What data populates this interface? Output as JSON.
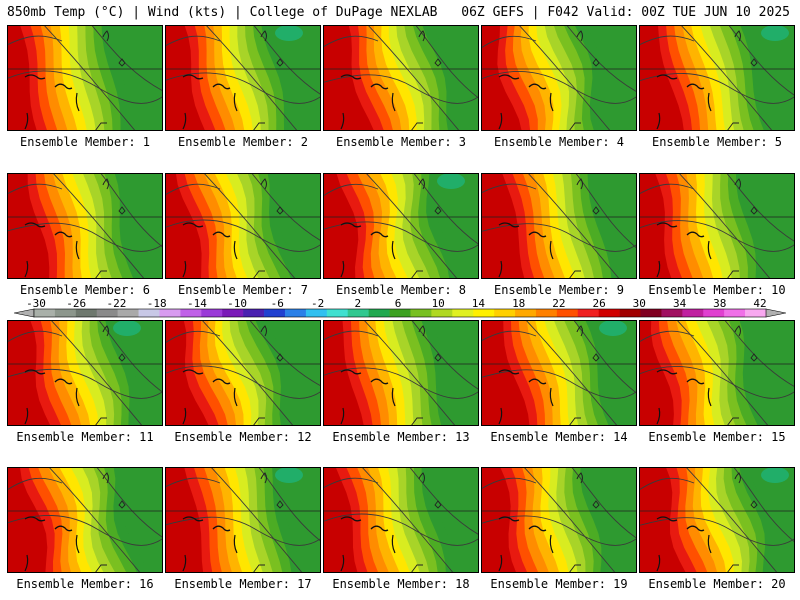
{
  "header": {
    "left": "850mb Temp (°C) | Wind (kts) | College of DuPage NEXLAB",
    "right": "06Z GEFS | F042 Valid: 00Z TUE JUN 10 2025"
  },
  "panels": [
    {
      "label": "Ensemble Member: 1",
      "row": 0,
      "col": 0
    },
    {
      "label": "Ensemble Member: 2",
      "row": 0,
      "col": 1
    },
    {
      "label": "Ensemble Member: 3",
      "row": 0,
      "col": 2
    },
    {
      "label": "Ensemble Member: 4",
      "row": 0,
      "col": 3
    },
    {
      "label": "Ensemble Member: 5",
      "row": 0,
      "col": 4
    },
    {
      "label": "Ensemble Member: 6",
      "row": 1,
      "col": 0
    },
    {
      "label": "Ensemble Member: 7",
      "row": 1,
      "col": 1
    },
    {
      "label": "Ensemble Member: 8",
      "row": 1,
      "col": 2
    },
    {
      "label": "Ensemble Member: 9",
      "row": 1,
      "col": 3
    },
    {
      "label": "Ensemble Member: 10",
      "row": 1,
      "col": 4
    },
    {
      "label": "Ensemble Member: 11",
      "row": 2,
      "col": 0
    },
    {
      "label": "Ensemble Member: 12",
      "row": 2,
      "col": 1
    },
    {
      "label": "Ensemble Member: 13",
      "row": 2,
      "col": 2
    },
    {
      "label": "Ensemble Member: 14",
      "row": 2,
      "col": 3
    },
    {
      "label": "Ensemble Member: 15",
      "row": 2,
      "col": 4
    },
    {
      "label": "Ensemble Member: 16",
      "row": 3,
      "col": 0
    },
    {
      "label": "Ensemble Member: 17",
      "row": 3,
      "col": 1
    },
    {
      "label": "Ensemble Member: 18",
      "row": 3,
      "col": 2
    },
    {
      "label": "Ensemble Member: 19",
      "row": 3,
      "col": 3
    },
    {
      "label": "Ensemble Member: 20",
      "row": 3,
      "col": 4
    }
  ],
  "colorbar": {
    "labels": [
      "-30",
      "-26",
      "-22",
      "-18",
      "-14",
      "-10",
      "-6",
      "-2",
      "2",
      "6",
      "10",
      "14",
      "18",
      "22",
      "26",
      "30",
      "34",
      "38",
      "42"
    ],
    "colors": [
      "#a9b0a9",
      "#8c968c",
      "#6e786e",
      "#8a8a8a",
      "#a9a9a9",
      "#c8c8e6",
      "#d89bf0",
      "#c060e8",
      "#9a3ad8",
      "#7a1ab8",
      "#4a20b0",
      "#2040d0",
      "#2a80e8",
      "#30c0f0",
      "#40e0d0",
      "#30c890",
      "#20a850",
      "#3ca020",
      "#78c020",
      "#b0d820",
      "#e0f020",
      "#fff000",
      "#ffd000",
      "#ffa800",
      "#ff8000",
      "#ff5000",
      "#f02020",
      "#d00000",
      "#a00000",
      "#800020",
      "#a01060",
      "#c020a0",
      "#e040d0",
      "#f070e8",
      "#f8a8f0"
    ],
    "arrow_color": "#b0b0b0"
  },
  "map_colors": {
    "red_dark": "#c80000",
    "red": "#e81a10",
    "orange_red": "#ff5000",
    "orange": "#ff8c00",
    "amber": "#ffb400",
    "yellow": "#ffe600",
    "yellow_green": "#d8ec20",
    "light_green": "#a8d428",
    "green": "#7ac020",
    "mid_green": "#4cac24",
    "dark_green": "#2e9a30",
    "teal": "#20b070"
  }
}
